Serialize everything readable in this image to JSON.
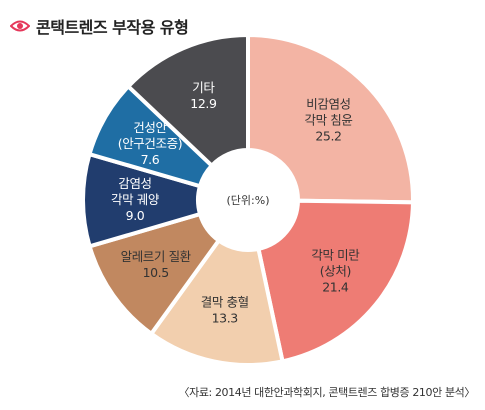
{
  "title": "콘택트렌즈 부작용 유형",
  "title_icon": "eye-icon",
  "source_note": "〈자료: 2014년 대한안과학회지, 콘택트렌즈 합병증 210안 분석〉",
  "chart_data": {
    "type": "pie",
    "variant": "donut",
    "center_label": "(단위:%)",
    "unit": "%",
    "slices": [
      {
        "label_lines": [
          "비감염성",
          "각막 침윤"
        ],
        "value": 25.2,
        "value_text": "25.2",
        "color": "#f3b4a4",
        "light_text": false
      },
      {
        "label_lines": [
          "각막 미란",
          "(상처)"
        ],
        "value": 21.4,
        "value_text": "21.4",
        "color": "#ee7c74",
        "light_text": false
      },
      {
        "label_lines": [
          "결막 충혈"
        ],
        "value": 13.3,
        "value_text": "13.3",
        "color": "#f2cfae",
        "light_text": false
      },
      {
        "label_lines": [
          "알레르기 질환"
        ],
        "value": 10.5,
        "value_text": "10.5",
        "color": "#c18860",
        "light_text": false
      },
      {
        "label_lines": [
          "감염성",
          "각막 궤양"
        ],
        "value": 9.0,
        "value_text": "9.0",
        "color": "#213d6e",
        "light_text": true
      },
      {
        "label_lines": [
          "건성안",
          "(안구건조증)"
        ],
        "value": 7.6,
        "value_text": "7.6",
        "color": "#1f6ea4",
        "light_text": true
      },
      {
        "label_lines": [
          "기타"
        ],
        "value": 12.9,
        "value_text": "12.9",
        "color": "#4b4b4f",
        "light_text": true
      }
    ],
    "legend": "none"
  }
}
